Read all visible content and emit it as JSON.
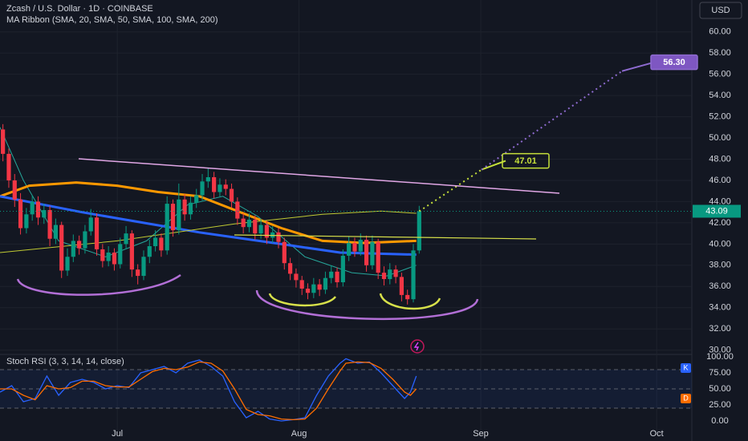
{
  "chart_data": [
    {
      "type": "candlestick",
      "title": "Zcash / U.S. Dollar · 1D · COINBASE",
      "subtitle": "MA Ribbon (SMA, 20, SMA, 50, SMA, 100, SMA, 200)",
      "currency": "USD",
      "xlim": [
        0,
        118
      ],
      "xticks": [
        {
          "value": 20,
          "label": "Jul"
        },
        {
          "value": 51,
          "label": "Aug"
        },
        {
          "value": 82,
          "label": "Sep"
        },
        {
          "value": 112,
          "label": "Oct"
        }
      ],
      "ylim": [
        29.6,
        63
      ],
      "yticks": [
        {
          "value": 30,
          "label": "30.00"
        },
        {
          "value": 32,
          "label": "32.00"
        },
        {
          "value": 34,
          "label": "34.00"
        },
        {
          "value": 36,
          "label": "36.00"
        },
        {
          "value": 38,
          "label": "38.00"
        },
        {
          "value": 40,
          "label": "40.00"
        },
        {
          "value": 42,
          "label": "42.00"
        },
        {
          "value": 44,
          "label": "44.00"
        },
        {
          "value": 46,
          "label": "46.00"
        },
        {
          "value": 48,
          "label": "48.00"
        },
        {
          "value": 50,
          "label": "50.00"
        },
        {
          "value": 52,
          "label": "52.00"
        },
        {
          "value": 54,
          "label": "54.00"
        },
        {
          "value": 56,
          "label": "56.00"
        },
        {
          "value": 58,
          "label": "58.00"
        },
        {
          "value": 60,
          "label": "60.00"
        }
      ],
      "up_color": "#089981",
      "down_color": "#f23645",
      "open": [
        50.8,
        48.5,
        46.0,
        44.2,
        41.5,
        42.8,
        44.0,
        42.5,
        43.2,
        40.5,
        41.8,
        37.5,
        38.8,
        40.3,
        39.6,
        41.2,
        42.5,
        39.5,
        38.4,
        39.2,
        38.1,
        40.0,
        41.0,
        37.6,
        37.0,
        38.8,
        39.8,
        40.6,
        39.4,
        43.8,
        41.3,
        44.2,
        42.8,
        43.9,
        44.6,
        45.9,
        46.3,
        44.9,
        45.6,
        45.2,
        44.0,
        42.4,
        41.6,
        42.3,
        41.0,
        41.8,
        40.6,
        41.1,
        40.2,
        38.2,
        37.2,
        36.6,
        35.8,
        35.4,
        36.2,
        35.7,
        36.8,
        37.4,
        36.4,
        38.9,
        40.1,
        39.3,
        40.4,
        38.0,
        40.2,
        37.3,
        36.7,
        37.6,
        36.9,
        35.2,
        34.8,
        39.4
      ],
      "high": [
        51.3,
        49.0,
        46.6,
        44.8,
        43.4,
        44.6,
        44.5,
        43.8,
        43.6,
        42.4,
        42.1,
        39.6,
        40.9,
        40.8,
        41.8,
        43.3,
        42.9,
        40.0,
        39.8,
        39.6,
        40.6,
        41.7,
        41.3,
        38.1,
        39.4,
        40.4,
        41.3,
        41.0,
        44.5,
        44.2,
        45.7,
        44.7,
        44.5,
        45.2,
        46.6,
        47.2,
        46.8,
        46.2,
        46.1,
        45.7,
        44.4,
        42.9,
        42.9,
        42.7,
        42.4,
        42.2,
        41.7,
        41.5,
        40.6,
        38.7,
        37.7,
        37.0,
        36.3,
        36.8,
        36.7,
        37.4,
        38.0,
        37.8,
        39.5,
        40.7,
        40.6,
        41.0,
        40.8,
        40.8,
        40.5,
        37.9,
        38.2,
        38.0,
        37.3,
        35.7,
        40.0,
        43.6
      ],
      "low": [
        47.8,
        45.3,
        43.5,
        40.9,
        41.0,
        42.2,
        41.8,
        41.9,
        39.8,
        40.0,
        36.8,
        37.0,
        38.3,
        39.0,
        39.1,
        40.8,
        38.9,
        37.8,
        37.9,
        37.5,
        37.7,
        39.5,
        36.9,
        36.2,
        36.6,
        38.2,
        39.3,
        38.8,
        39.0,
        40.7,
        40.9,
        42.2,
        42.3,
        43.4,
        44.1,
        45.3,
        44.3,
        44.4,
        44.6,
        43.4,
        41.8,
        41.0,
        41.1,
        40.4,
        40.5,
        40.0,
        40.1,
        39.6,
        37.6,
        36.6,
        35.9,
        35.2,
        34.8,
        34.9,
        35.1,
        35.3,
        36.3,
        35.9,
        36.0,
        38.4,
        38.8,
        38.9,
        37.4,
        37.6,
        36.7,
        36.1,
        36.2,
        36.3,
        34.6,
        34.3,
        34.5,
        39.1
      ],
      "close": [
        48.5,
        46.0,
        44.2,
        41.5,
        42.8,
        44.0,
        42.5,
        43.2,
        40.5,
        41.8,
        37.5,
        38.8,
        40.3,
        39.6,
        41.2,
        42.5,
        39.5,
        38.4,
        39.2,
        38.1,
        40.0,
        41.0,
        37.6,
        37.0,
        38.8,
        39.8,
        40.6,
        39.4,
        43.8,
        41.3,
        44.2,
        42.8,
        43.9,
        44.6,
        45.9,
        46.3,
        44.9,
        45.6,
        45.2,
        44.0,
        42.4,
        41.6,
        42.3,
        41.0,
        41.8,
        40.6,
        41.1,
        40.2,
        38.2,
        37.2,
        36.6,
        35.8,
        35.4,
        36.2,
        35.7,
        36.8,
        37.4,
        36.4,
        38.9,
        40.1,
        39.3,
        40.4,
        38.0,
        40.2,
        37.3,
        36.7,
        37.6,
        36.9,
        35.2,
        34.8,
        39.4,
        43.09
      ],
      "last_price": 43.09,
      "lines": [
        {
          "color": "#26a69a",
          "width": 1,
          "x": [
            0,
            4,
            10,
            18,
            25,
            32,
            38,
            44,
            52,
            60,
            66,
            71
          ],
          "values": [
            51,
            46,
            40.3,
            38.8,
            40.3,
            43.7,
            44.5,
            42.6,
            38.8,
            37.3,
            37,
            38
          ]
        },
        {
          "color": "#ff9800",
          "width": 3,
          "x": [
            0,
            5,
            13,
            20,
            27,
            34,
            41,
            48,
            55,
            62,
            71
          ],
          "values": [
            44.5,
            45.5,
            45.8,
            45.5,
            44.9,
            44.5,
            43,
            41.5,
            40.3,
            40.1,
            40.3
          ]
        },
        {
          "color": "#2962ff",
          "width": 3,
          "x": [
            0,
            14,
            34,
            48,
            58,
            71
          ],
          "values": [
            44.5,
            43,
            41.1,
            40,
            39.2,
            39
          ]
        },
        {
          "color": "#c0ca33",
          "width": 1,
          "x": [
            0,
            20,
            40,
            55,
            65,
            71
          ],
          "values": [
            39.2,
            40.3,
            41.9,
            42.8,
            43.1,
            42.9
          ]
        }
      ],
      "targets": [
        47.01,
        {
          "value": 56.3,
          "label": "56.30"
        }
      ],
      "target_colors": [
        "#c6e03a",
        "#8e6bd0"
      ]
    },
    {
      "type": "line",
      "title": "Stoch RSI (3, 3, 14, 14, close)",
      "xlim": [
        0,
        118
      ],
      "ylim": [
        -18.75,
        102.5
      ],
      "yticks": [
        {
          "value": 0,
          "label": "0.00"
        },
        {
          "value": 25,
          "label": "25.00"
        },
        {
          "value": 50,
          "label": "50.00"
        },
        {
          "value": 75,
          "label": "75.00"
        },
        {
          "value": 100,
          "label": "100.00"
        }
      ],
      "levels": [
        80,
        50,
        20
      ],
      "series": [
        {
          "name": "K",
          "color": "#2962ff",
          "x": [
            0,
            2,
            4,
            6,
            8,
            10,
            12,
            14,
            16,
            18,
            20,
            22,
            24,
            26,
            28,
            30,
            32,
            34,
            36,
            38,
            40,
            42,
            44,
            46,
            48,
            50,
            52,
            54,
            56,
            58,
            59,
            61,
            63,
            65,
            67,
            69,
            70,
            71
          ],
          "values": [
            45,
            55,
            30,
            35,
            70,
            40,
            60,
            65,
            60,
            50,
            55,
            52,
            75,
            80,
            85,
            75,
            90,
            95,
            85,
            70,
            30,
            5,
            15,
            3,
            0,
            2,
            5,
            40,
            70,
            90,
            97,
            90,
            92,
            75,
            55,
            35,
            45,
            70
          ]
        },
        {
          "name": "D",
          "color": "#ff6d00",
          "x": [
            0,
            2,
            4,
            6,
            8,
            10,
            12,
            14,
            16,
            18,
            20,
            22,
            24,
            26,
            28,
            30,
            32,
            34,
            36,
            38,
            40,
            42,
            44,
            46,
            48,
            50,
            52,
            54,
            56,
            58,
            59,
            61,
            63,
            65,
            67,
            69,
            70,
            71
          ],
          "values": [
            50,
            50,
            40,
            33,
            55,
            50,
            52,
            62,
            62,
            55,
            53,
            53,
            65,
            77,
            82,
            80,
            84,
            92,
            90,
            78,
            50,
            18,
            10,
            8,
            3,
            2,
            3,
            20,
            50,
            78,
            90,
            92,
            91,
            82,
            65,
            45,
            40,
            50
          ]
        }
      ]
    }
  ]
}
